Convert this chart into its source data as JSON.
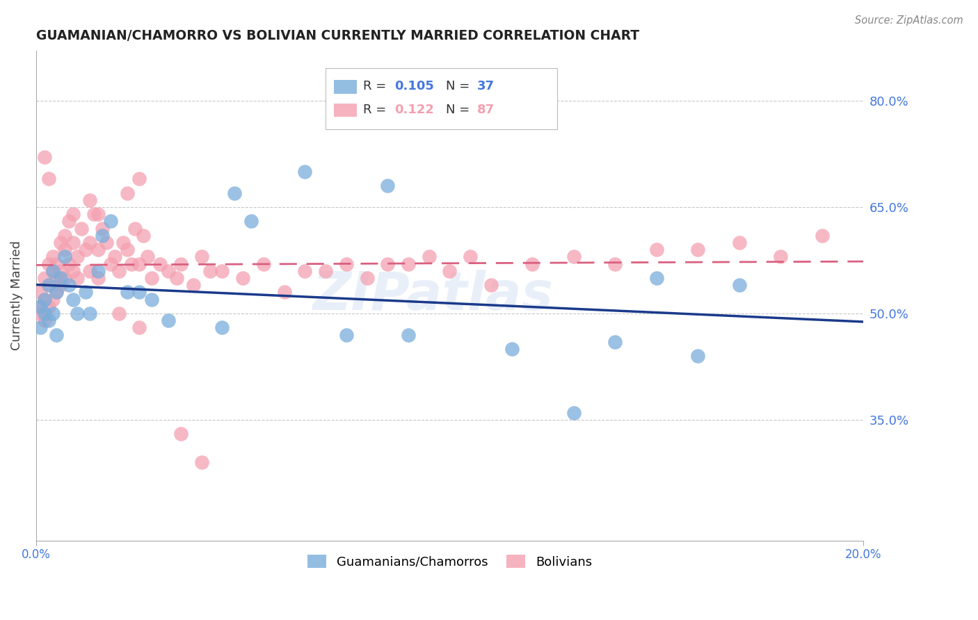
{
  "title": "GUAMANIAN/CHAMORRO VS BOLIVIAN CURRENTLY MARRIED CORRELATION CHART",
  "source": "Source: ZipAtlas.com",
  "ylabel": "Currently Married",
  "ytick_vals": [
    0.35,
    0.5,
    0.65,
    0.8
  ],
  "ytick_labels": [
    "35.0%",
    "50.0%",
    "65.0%",
    "80.0%"
  ],
  "xtick_vals": [
    0.0,
    0.2
  ],
  "xtick_labels": [
    "0.0%",
    "20.0%"
  ],
  "xlim": [
    0.0,
    0.2
  ],
  "ylim": [
    0.18,
    0.87
  ],
  "legend_v1": "0.105",
  "legend_n1": "37",
  "legend_v2": "0.122",
  "legend_n2": "87",
  "label_blue": "Guamanians/Chamorros",
  "label_pink": "Bolivians",
  "blue_color": "#7aaddb",
  "pink_color": "#f4a0b0",
  "blue_line_color": "#1a3a8a",
  "pink_line_color": "#d96080",
  "bg_color": "#ffffff",
  "grid_color": "#c8c8c8",
  "title_color": "#222222",
  "axis_tick_color": "#4477dd",
  "watermark_text": "ZIPatlas",
  "blue_x": [
    0.001,
    0.001,
    0.002,
    0.002,
    0.003,
    0.003,
    0.004,
    0.004,
    0.005,
    0.005,
    0.006,
    0.007,
    0.008,
    0.009,
    0.01,
    0.012,
    0.013,
    0.015,
    0.016,
    0.018,
    0.022,
    0.025,
    0.028,
    0.032,
    0.045,
    0.048,
    0.052,
    0.065,
    0.075,
    0.085,
    0.09,
    0.115,
    0.13,
    0.15,
    0.17,
    0.16,
    0.14
  ],
  "blue_y": [
    0.51,
    0.48,
    0.52,
    0.5,
    0.54,
    0.49,
    0.56,
    0.5,
    0.53,
    0.47,
    0.55,
    0.58,
    0.54,
    0.52,
    0.5,
    0.53,
    0.5,
    0.56,
    0.61,
    0.63,
    0.53,
    0.53,
    0.52,
    0.49,
    0.48,
    0.67,
    0.63,
    0.7,
    0.47,
    0.68,
    0.47,
    0.45,
    0.36,
    0.55,
    0.54,
    0.44,
    0.46
  ],
  "pink_x": [
    0.001,
    0.001,
    0.001,
    0.002,
    0.002,
    0.002,
    0.003,
    0.003,
    0.003,
    0.004,
    0.004,
    0.004,
    0.005,
    0.005,
    0.005,
    0.006,
    0.006,
    0.006,
    0.007,
    0.007,
    0.007,
    0.008,
    0.008,
    0.009,
    0.009,
    0.01,
    0.01,
    0.011,
    0.012,
    0.013,
    0.013,
    0.014,
    0.015,
    0.015,
    0.016,
    0.017,
    0.018,
    0.019,
    0.02,
    0.021,
    0.022,
    0.023,
    0.024,
    0.025,
    0.026,
    0.027,
    0.028,
    0.03,
    0.032,
    0.034,
    0.035,
    0.038,
    0.04,
    0.042,
    0.045,
    0.05,
    0.055,
    0.06,
    0.065,
    0.07,
    0.075,
    0.08,
    0.085,
    0.09,
    0.095,
    0.1,
    0.105,
    0.11,
    0.12,
    0.13,
    0.14,
    0.15,
    0.16,
    0.17,
    0.18,
    0.19,
    0.002,
    0.003,
    0.022,
    0.025,
    0.035,
    0.04,
    0.009,
    0.013,
    0.015,
    0.02,
    0.025
  ],
  "pink_y": [
    0.51,
    0.53,
    0.5,
    0.52,
    0.55,
    0.49,
    0.54,
    0.57,
    0.51,
    0.56,
    0.52,
    0.58,
    0.55,
    0.53,
    0.57,
    0.56,
    0.6,
    0.54,
    0.59,
    0.55,
    0.61,
    0.57,
    0.63,
    0.56,
    0.6,
    0.58,
    0.55,
    0.62,
    0.59,
    0.6,
    0.56,
    0.64,
    0.59,
    0.55,
    0.62,
    0.6,
    0.57,
    0.58,
    0.56,
    0.6,
    0.59,
    0.57,
    0.62,
    0.57,
    0.61,
    0.58,
    0.55,
    0.57,
    0.56,
    0.55,
    0.57,
    0.54,
    0.58,
    0.56,
    0.56,
    0.55,
    0.57,
    0.53,
    0.56,
    0.56,
    0.57,
    0.55,
    0.57,
    0.57,
    0.58,
    0.56,
    0.58,
    0.54,
    0.57,
    0.58,
    0.57,
    0.59,
    0.59,
    0.6,
    0.58,
    0.61,
    0.72,
    0.69,
    0.67,
    0.69,
    0.33,
    0.29,
    0.64,
    0.66,
    0.64,
    0.5,
    0.48
  ]
}
